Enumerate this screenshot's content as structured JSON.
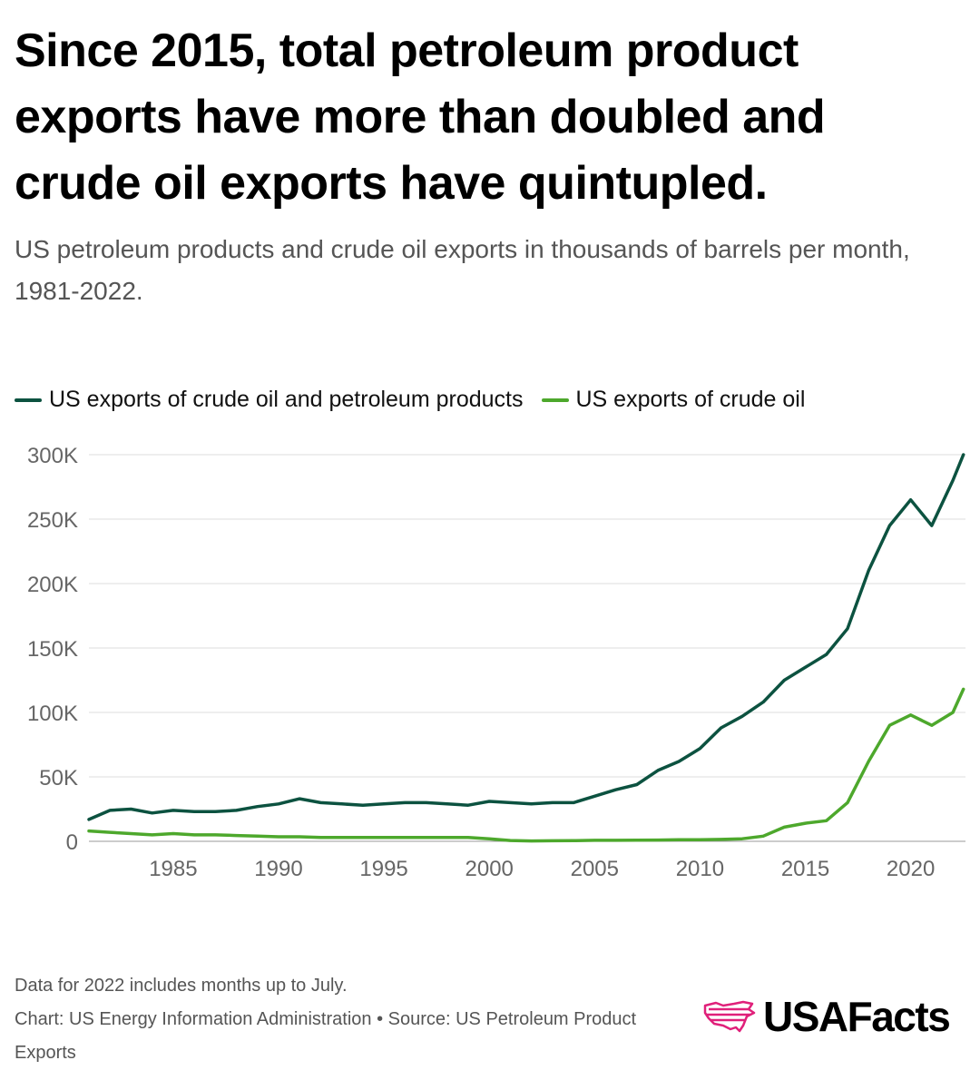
{
  "header": {
    "title": "Since 2015, total petroleum product exports have more than doubled and crude oil exports have quintupled.",
    "subtitle": "US petroleum products and crude oil exports in thousands of barrels per month, 1981-2022."
  },
  "colors": {
    "total": "#0c5240",
    "crude": "#4da82c",
    "grid": "#dcdcdc",
    "axis_text": "#666666",
    "logo_accent": "#e0207a"
  },
  "footer": {
    "note": "Data for 2022 includes months up to July.",
    "credit": "Chart: US Energy Information Administration • Source: US Petroleum Product Exports"
  },
  "logo": {
    "text": "USAFacts",
    "icon": "usa-map-stripes-icon"
  },
  "chart_data": {
    "type": "line",
    "legend": [
      "US exports of crude oil and petroleum products",
      "US exports of crude oil"
    ],
    "legend_placement": "top-left",
    "grid": true,
    "xlim": [
      1981,
      2022.6
    ],
    "ylim": [
      0,
      300000
    ],
    "x_ticks": [
      1985,
      1990,
      1995,
      2000,
      2005,
      2010,
      2015,
      2020
    ],
    "x_tick_labels": [
      "1985",
      "1990",
      "1995",
      "2000",
      "2005",
      "2010",
      "2015",
      "2020"
    ],
    "y_ticks": [
      0,
      50000,
      100000,
      150000,
      200000,
      250000,
      300000
    ],
    "y_tick_labels": [
      "0",
      "50K",
      "100K",
      "150K",
      "200K",
      "250K",
      "300K"
    ],
    "series": [
      {
        "name": "US exports of crude oil and petroleum products",
        "x": [
          1981,
          1982,
          1983,
          1984,
          1985,
          1986,
          1987,
          1988,
          1989,
          1990,
          1991,
          1992,
          1993,
          1994,
          1995,
          1996,
          1997,
          1998,
          1999,
          2000,
          2001,
          2002,
          2003,
          2004,
          2005,
          2006,
          2007,
          2008,
          2009,
          2010,
          2011,
          2012,
          2013,
          2014,
          2015,
          2016,
          2017,
          2018,
          2019,
          2020,
          2021,
          2022,
          2022.5
        ],
        "values": [
          17000,
          24000,
          25000,
          22000,
          24000,
          23000,
          23000,
          24000,
          27000,
          29000,
          33000,
          30000,
          29000,
          28000,
          29000,
          30000,
          30000,
          29000,
          28000,
          31000,
          30000,
          29000,
          30000,
          30000,
          35000,
          40000,
          44000,
          55000,
          62000,
          72000,
          88000,
          97000,
          108000,
          125000,
          135000,
          145000,
          165000,
          210000,
          245000,
          265000,
          245000,
          280000,
          300000
        ]
      },
      {
        "name": "US exports of crude oil",
        "x": [
          1981,
          1982,
          1983,
          1984,
          1985,
          1986,
          1987,
          1988,
          1989,
          1990,
          1991,
          1992,
          1993,
          1994,
          1995,
          1996,
          1997,
          1998,
          1999,
          2000,
          2001,
          2002,
          2003,
          2004,
          2005,
          2006,
          2007,
          2008,
          2009,
          2010,
          2011,
          2012,
          2013,
          2014,
          2015,
          2016,
          2017,
          2018,
          2019,
          2020,
          2021,
          2022,
          2022.5
        ],
        "values": [
          8000,
          7000,
          6000,
          5000,
          6000,
          5000,
          5000,
          4500,
          4000,
          3500,
          3500,
          3000,
          3000,
          3000,
          3000,
          3000,
          3000,
          3000,
          3000,
          2000,
          600,
          300,
          400,
          500,
          800,
          800,
          900,
          1000,
          1200,
          1300,
          1500,
          2000,
          4000,
          11000,
          14000,
          16000,
          30000,
          62000,
          90000,
          98000,
          90000,
          100000,
          118000
        ]
      }
    ]
  }
}
